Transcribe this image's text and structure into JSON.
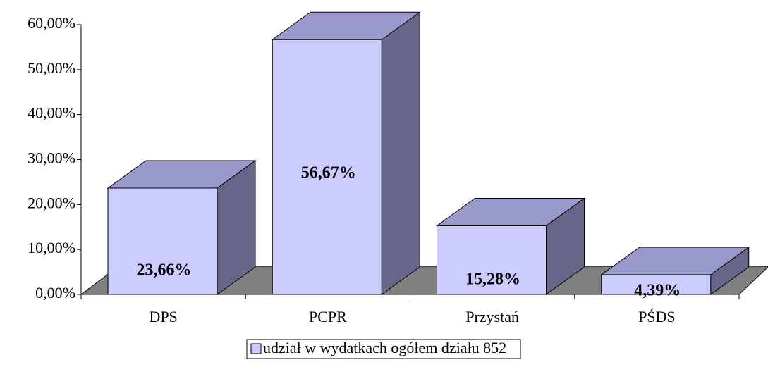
{
  "chart_data": {
    "type": "bar3d",
    "categories": [
      "DPS",
      "PCPR",
      "Przystań",
      "PŚDS"
    ],
    "series": [
      {
        "name": "udział w wydatkach ogółem działu 852",
        "color": "#ccccff",
        "values": [
          23.66,
          56.67,
          15.28,
          4.39
        ],
        "value_labels": [
          "23,66%",
          "56,67%",
          "15,28%",
          "4,39%"
        ]
      }
    ],
    "ylim": [
      0,
      60
    ],
    "yticks": [
      {
        "value": 0,
        "label": "0,00%"
      },
      {
        "value": 10,
        "label": "10,00%"
      },
      {
        "value": 20,
        "label": "20,00%"
      },
      {
        "value": 30,
        "label": "30,00%"
      },
      {
        "value": 40,
        "label": "40,00%"
      },
      {
        "value": 50,
        "label": "50,00%"
      },
      {
        "value": 60,
        "label": "60,00%"
      }
    ],
    "legend": "bottom"
  }
}
